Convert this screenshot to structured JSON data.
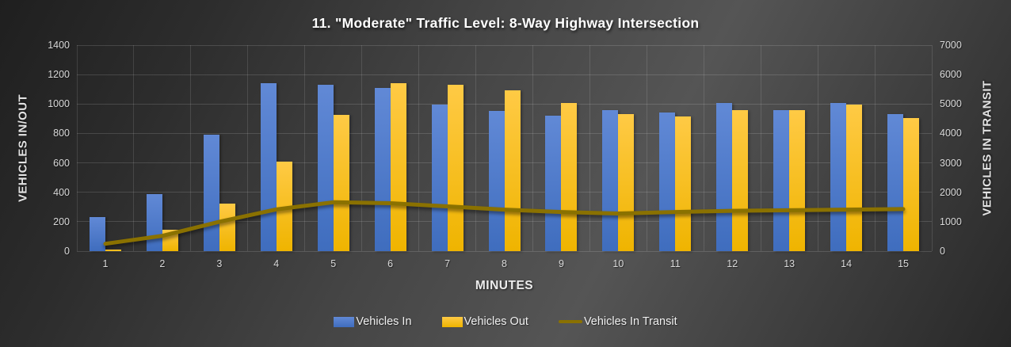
{
  "chart_data": {
    "type": "combo-bar-line",
    "title": "11. \"Moderate\" Traffic Level: 8-Way Highway Intersection",
    "xlabel": "MINUTES",
    "ylabel_left": "VEHICLES IN/OUT",
    "ylabel_right": "VEHICLES IN TRANSIT",
    "categories": [
      "1",
      "2",
      "3",
      "4",
      "5",
      "6",
      "7",
      "8",
      "9",
      "10",
      "11",
      "12",
      "13",
      "14",
      "15"
    ],
    "series": [
      {
        "name": "Vehicles In",
        "type": "bar",
        "axis": "left",
        "values": [
          230,
          390,
          790,
          1140,
          1130,
          1110,
          995,
          955,
          920,
          960,
          940,
          1005,
          960,
          1005,
          930
        ]
      },
      {
        "name": "Vehicles Out",
        "type": "bar",
        "axis": "left",
        "values": [
          10,
          145,
          325,
          610,
          925,
          1140,
          1130,
          1095,
          1005,
          930,
          915,
          960,
          960,
          995,
          905
        ]
      },
      {
        "name": "Vehicles In Transit",
        "type": "line",
        "axis": "right",
        "values": [
          250,
          520,
          1000,
          1420,
          1660,
          1630,
          1520,
          1410,
          1330,
          1280,
          1330,
          1370,
          1390,
          1410,
          1430
        ]
      }
    ],
    "ylim_left": [
      0,
      1400
    ],
    "ytick_step_left": 200,
    "ylim_right": [
      0,
      7000
    ],
    "ytick_step_right": 1000,
    "grid": true,
    "legend_position": "bottom"
  },
  "colors": {
    "bar_in_top": "#6189d6",
    "bar_in_bottom": "#3f6dbe",
    "bar_out_top": "#ffca45",
    "bar_out_bottom": "#efb400",
    "line": "#8a7100",
    "gridline": "rgba(255,255,255,0.14)",
    "tick_text": "#d9d9d9",
    "title_text": "#ffffff"
  }
}
